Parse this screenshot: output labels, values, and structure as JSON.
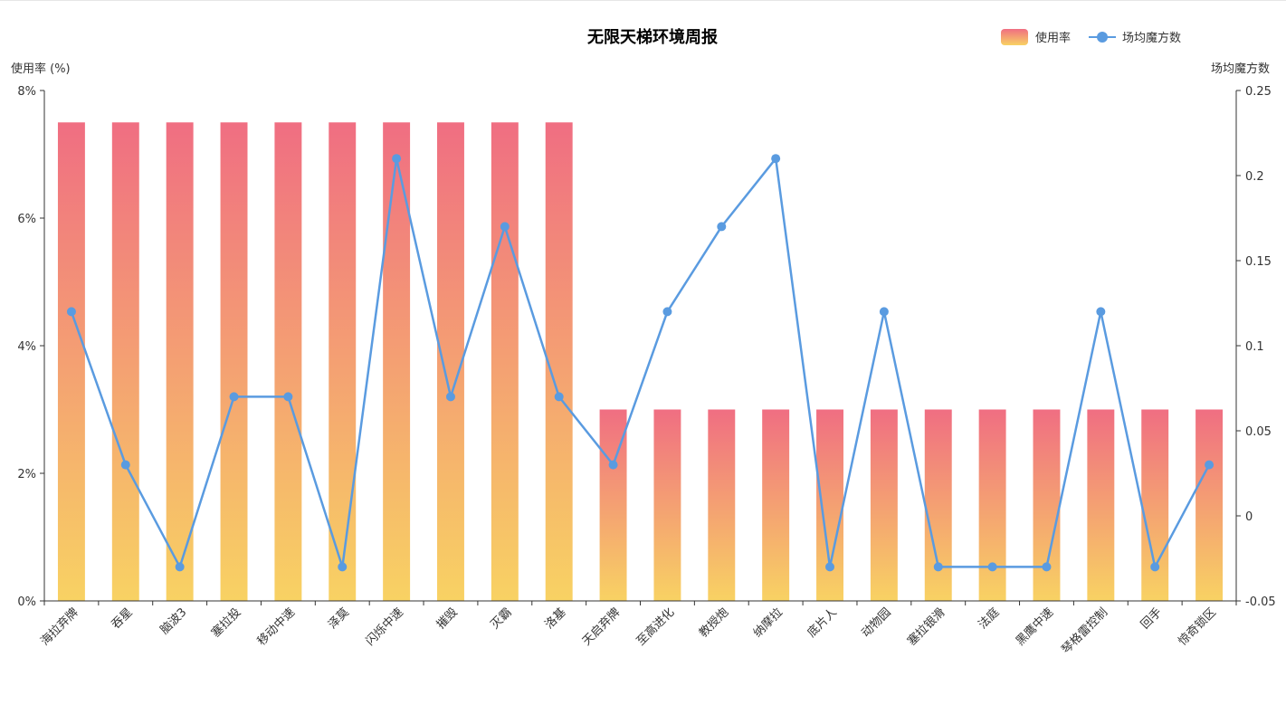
{
  "chart_data": {
    "type": "bar",
    "title": "无限天梯环境周报",
    "categories": [
      "海拉弃牌",
      "吞星",
      "脑波3",
      "塞拉投",
      "移动中速",
      "泽莫",
      "闪烁中速",
      "摧毁",
      "灭霸",
      "洛基",
      "天启弃牌",
      "至高进化",
      "教授炮",
      "纳摩拉",
      "底片人",
      "动物园",
      "塞拉银滑",
      "法庭",
      "黑鹰中速",
      "琴格雷控制",
      "回手",
      "惊奇锁区"
    ],
    "series": [
      {
        "name": "使用率",
        "type": "bar",
        "axis": "left",
        "values": [
          7.5,
          7.5,
          7.5,
          7.5,
          7.5,
          7.5,
          7.5,
          7.5,
          7.5,
          7.5,
          3,
          3,
          3,
          3,
          3,
          3,
          3,
          3,
          3,
          3,
          3,
          3
        ]
      },
      {
        "name": "场均魔方数",
        "type": "line",
        "axis": "right",
        "values": [
          0.12,
          0.03,
          -0.03,
          0.07,
          0.07,
          -0.03,
          0.21,
          0.07,
          0.17,
          0.07,
          0.03,
          0.12,
          0.17,
          0.21,
          -0.03,
          0.12,
          -0.03,
          -0.03,
          -0.03,
          0.12,
          -0.03,
          0.03
        ]
      }
    ],
    "y_left": {
      "label": "使用率 (%)",
      "ylim": [
        0,
        8
      ],
      "ticks": [
        0,
        2,
        4,
        6,
        8
      ],
      "tick_labels": [
        "0%",
        "2%",
        "4%",
        "6%",
        "8%"
      ]
    },
    "y_right": {
      "label": "场均魔方数",
      "ylim": [
        -0.05,
        0.25
      ],
      "ticks": [
        -0.05,
        0,
        0.05,
        0.1,
        0.15,
        0.2,
        0.25
      ],
      "tick_labels": [
        "-0.05",
        "0",
        "0.05",
        "0.1",
        "0.15",
        "0.2",
        "0.25"
      ]
    },
    "legend_position": "top-right",
    "grid": false,
    "colors": {
      "bar_top": "#f06e82",
      "bar_bottom": "#f8d263",
      "line": "#5a9be0",
      "axis": "#333333"
    }
  }
}
